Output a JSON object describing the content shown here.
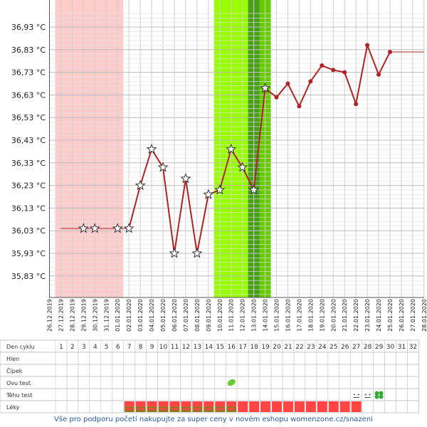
{
  "chart_data": {
    "type": "line",
    "y_ticks": [
      "35,83 °C",
      "35,93 °C",
      "36,03 °C",
      "36,13 °C",
      "36,23 °C",
      "36,33 °C",
      "36,43 °C",
      "36,53 °C",
      "36,63 °C",
      "36,73 °C",
      "36,83 °C",
      "36,93 °C"
    ],
    "ylim": [
      35.73,
      37.0
    ],
    "x_dates": [
      "26.12.2019",
      "27.12.2019",
      "28.12.2019",
      "29.12.2019",
      "30.12.2019",
      "31.12.2019",
      "01.01.2020",
      "02.01.2020",
      "03.01.2020",
      "04.01.2020",
      "05.01.2020",
      "06.01.2020",
      "07.01.2020",
      "08.01.2020",
      "09.01.2020",
      "10.01.2020",
      "11.01.2020",
      "12.01.2020",
      "13.01.2020",
      "14.01.2020",
      "15.01.2020",
      "16.01.2020",
      "17.01.2020",
      "18.01.2020",
      "19.01.2020",
      "20.01.2020",
      "21.01.2020",
      "22.01.2020",
      "23.01.2020",
      "24.01.2020",
      "25.01.2020",
      "26.01.2020",
      "27.01.2020",
      "28.01.2020"
    ],
    "series": [
      {
        "values": [
          null,
          null,
          null,
          36.04,
          36.04,
          null,
          36.04,
          36.04,
          36.23,
          36.39,
          36.31,
          35.93,
          36.26,
          35.93,
          36.19,
          36.21,
          36.39,
          36.31,
          36.21,
          36.66,
          36.62,
          36.68,
          36.58,
          36.69,
          36.76,
          36.74,
          36.73,
          36.59,
          36.85,
          36.72,
          36.82,
          null,
          null,
          null
        ],
        "markers": [
          "none",
          "none",
          "none",
          "star",
          "star",
          "none",
          "star",
          "star",
          "star",
          "star",
          "star",
          "star",
          "star",
          "star",
          "star",
          "star",
          "star",
          "star",
          "star",
          "star",
          "dot",
          "dot",
          "dot",
          "dot",
          "dot",
          "dot",
          "dot",
          "dot",
          "dot",
          "dot",
          "dot",
          "none",
          "none",
          "none"
        ],
        "color": "#b22222"
      }
    ],
    "line_breaks": [
      [
        1,
        3
      ],
      [
        3,
        4
      ],
      [
        4,
        6
      ],
      [
        6,
        7
      ]
    ],
    "dashed_start": [
      1,
      36.04
    ],
    "tail_end": [
      31.0,
      36.82
    ],
    "shaded_regions": [
      {
        "from": 0.5,
        "to": 6.5,
        "color": "#ffcccc"
      },
      {
        "from": 14.5,
        "to": 19.5,
        "color": "#99ff00"
      },
      {
        "from": 17.5,
        "to": 19.5,
        "color": "#66cc00"
      },
      {
        "from": 17.5,
        "to": 18.5,
        "color": "#4a9e1e"
      }
    ],
    "grid": true
  },
  "table": {
    "rows": [
      "Den cyklu",
      "Hlen",
      "Čípek",
      "Ovu test",
      "Těhu test",
      "Léky"
    ],
    "day_numbers": [
      "1",
      "2",
      "3",
      "4",
      "5",
      "6",
      "7",
      "8",
      "9",
      "10",
      "11",
      "12",
      "13",
      "14",
      "15",
      "16",
      "17",
      "18",
      "19",
      "20",
      "21",
      "22",
      "23",
      "24",
      "25",
      "26",
      "27",
      "28",
      "29",
      "30",
      "31",
      "32"
    ],
    "ovu_test_marks": [
      {
        "day": 16,
        "icon": "leaf-icon"
      }
    ],
    "tehu_test_marks": [
      {
        "day": 27,
        "icon": "sad-face-icon"
      },
      {
        "day": 28,
        "icon": "sad-face-icon"
      },
      {
        "day": 29,
        "icon": "clover-icon"
      }
    ],
    "leky": [
      "none",
      "none",
      "none",
      "none",
      "none",
      "none",
      "green-red",
      "green-red",
      "green-red",
      "green-red",
      "green-red",
      "green-red",
      "green-red",
      "green-red",
      "green-red",
      "green-red",
      "red",
      "red",
      "red",
      "red",
      "red",
      "red",
      "red",
      "red",
      "red",
      "red",
      "red",
      "none",
      "none",
      "none",
      "none",
      "none"
    ]
  },
  "footer": "Vše pro podporu početí nakupujte za super ceny v novém eshopu womenzone.cz/snazeni",
  "colors": {
    "line": "#b22222",
    "grid": "#cccccc",
    "footer": "#2a5ba8"
  }
}
